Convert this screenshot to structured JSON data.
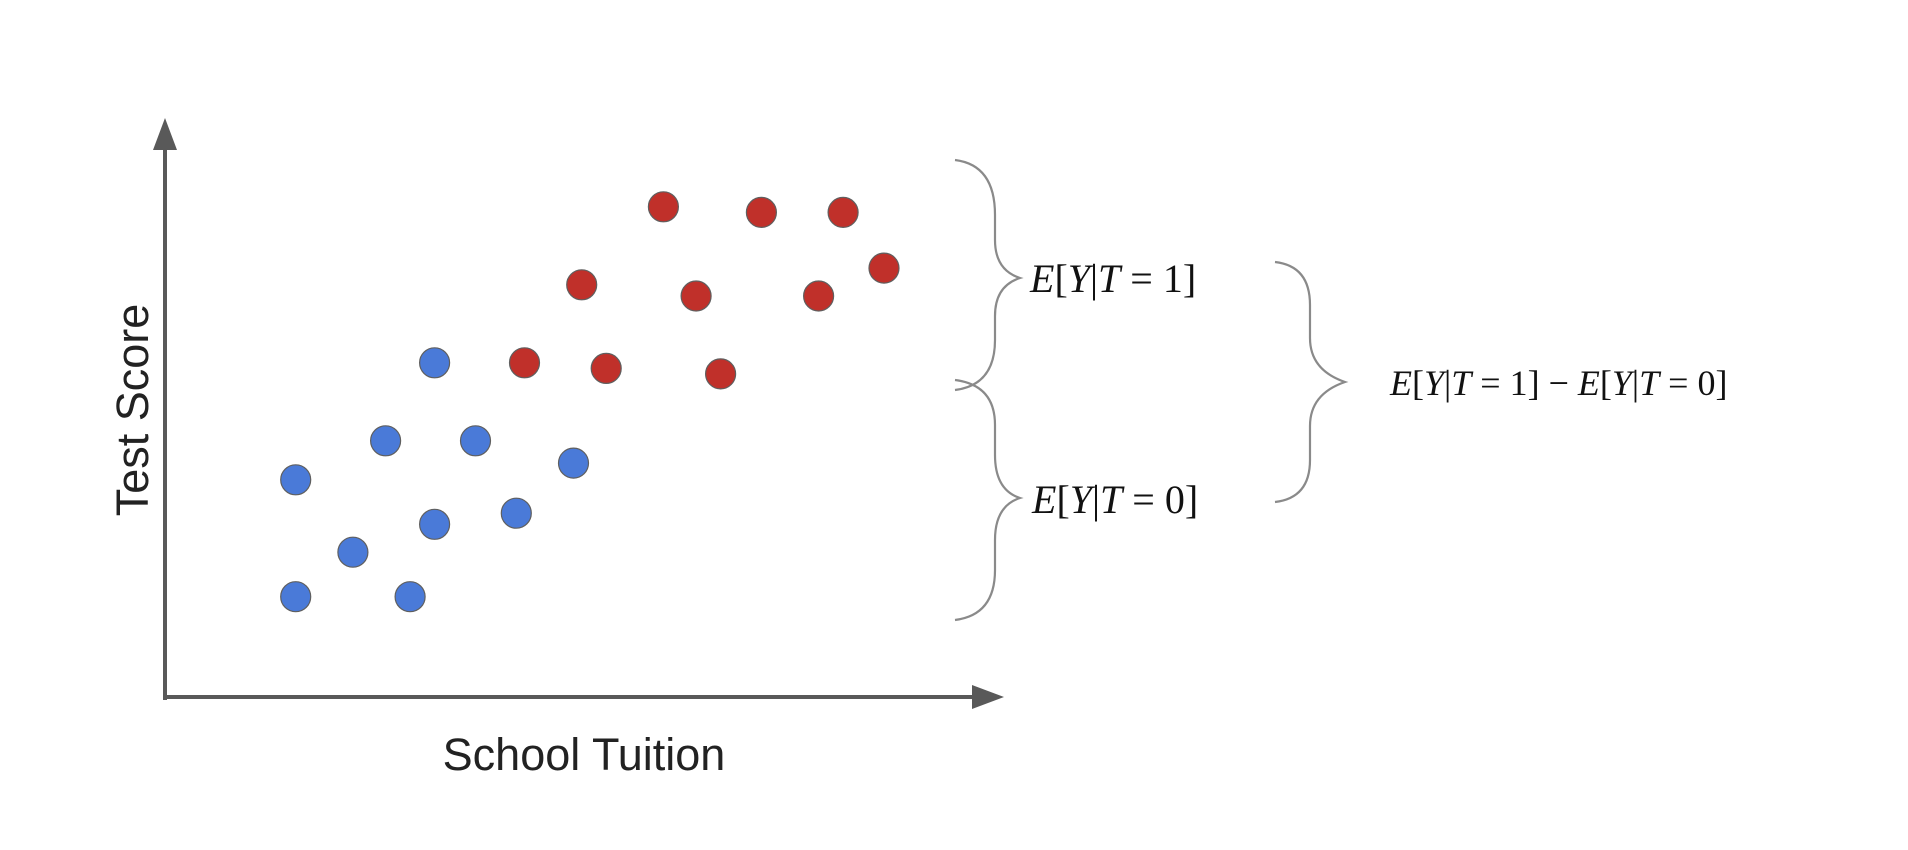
{
  "chart_data": {
    "type": "scatter",
    "title": "",
    "xlabel": "School Tuition",
    "ylabel": "Test Score",
    "xlim": [
      0,
      10
    ],
    "ylim": [
      0,
      10
    ],
    "grid": false,
    "series": [
      {
        "name": "T = 0",
        "color": "#4a7ad8",
        "points": [
          [
            1.6,
            1.8
          ],
          [
            3.0,
            1.8
          ],
          [
            2.3,
            2.6
          ],
          [
            3.3,
            3.1
          ],
          [
            4.3,
            3.3
          ],
          [
            1.6,
            3.9
          ],
          [
            2.7,
            4.6
          ],
          [
            3.8,
            4.6
          ],
          [
            5.0,
            4.2
          ],
          [
            3.3,
            6.0
          ]
        ]
      },
      {
        "name": "T = 1",
        "color": "#c0302a",
        "points": [
          [
            4.4,
            6.0
          ],
          [
            5.4,
            5.9
          ],
          [
            6.8,
            5.8
          ],
          [
            5.1,
            7.4
          ],
          [
            6.5,
            7.2
          ],
          [
            8.0,
            7.2
          ],
          [
            8.8,
            7.7
          ],
          [
            6.1,
            8.8
          ],
          [
            7.3,
            8.7
          ],
          [
            8.3,
            8.7
          ]
        ]
      }
    ],
    "annotations": [
      {
        "id": "treated",
        "segments": [
          "E",
          "[",
          "Y",
          "|",
          "T",
          " = 1]"
        ]
      },
      {
        "id": "control",
        "segments": [
          "E",
          "[",
          "Y",
          "|",
          "T",
          " = 0]"
        ]
      },
      {
        "id": "difference",
        "segments": [
          "E",
          "[",
          "Y",
          "|",
          "T",
          " = 1] − ",
          "E",
          "[",
          "Y",
          "|",
          "T",
          " = 0]"
        ]
      }
    ]
  }
}
